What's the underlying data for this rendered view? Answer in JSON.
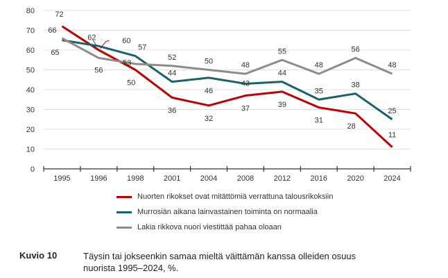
{
  "chart_data": {
    "type": "line",
    "categories": [
      "1995",
      "1996",
      "1998",
      "2001",
      "2004",
      "2008",
      "2012",
      "2016",
      "2020",
      "2024"
    ],
    "ylim": [
      0,
      80
    ],
    "yticks": [
      0,
      10,
      20,
      30,
      40,
      50,
      60,
      70,
      80
    ],
    "grid": true,
    "legend_placement": "bottom",
    "series": [
      {
        "name": "Nuorten rikokset ovat mitättömiä verrattuna talousrikoksiin",
        "color": "#c00000",
        "values": [
          72,
          60,
          50,
          36,
          32,
          37,
          39,
          31,
          28,
          11
        ]
      },
      {
        "name": "Murrosiän aikana lainvastainen toiminta on normaalia",
        "color": "#17636b",
        "values": [
          65,
          62,
          57,
          44,
          46,
          43,
          44,
          35,
          38,
          25
        ]
      },
      {
        "name": "Lakia rikkova nuori viestittää pahaa oloaan",
        "color": "#8c8c8c",
        "values": [
          66,
          56,
          53,
          52,
          50,
          48,
          55,
          48,
          56,
          48
        ]
      }
    ]
  },
  "caption": {
    "label": "Kuvio 10",
    "text": "Täysin tai jokseenkin samaa mieltä väittämän kanssa olleiden osuus nuorista 1995–2024, %."
  }
}
